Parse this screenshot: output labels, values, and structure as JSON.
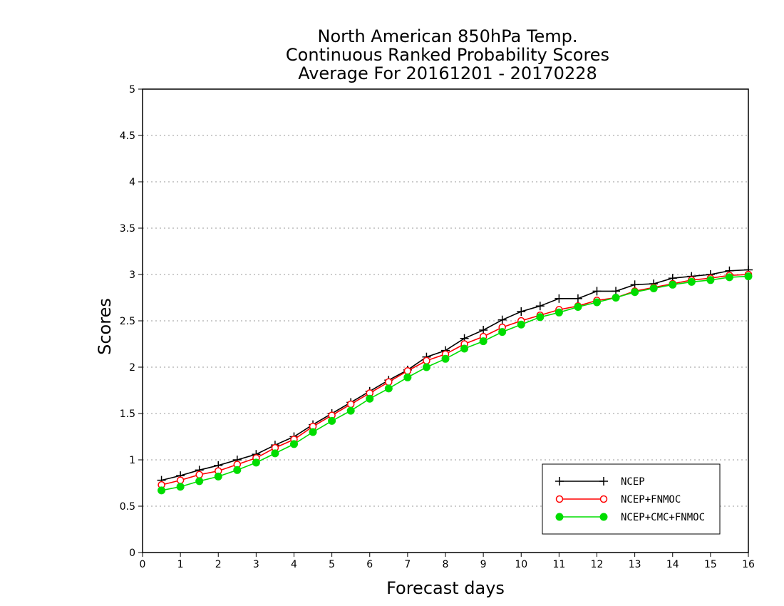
{
  "chart_data": {
    "type": "line",
    "title": [
      "North American 850hPa Temp.",
      "Continuous Ranked Probability Scores",
      "Average For 20161201 - 20170228"
    ],
    "xlabel": "Forecast days",
    "ylabel": "Scores",
    "xlim": [
      0,
      16
    ],
    "ylim": [
      0,
      5
    ],
    "xticks": [
      "0",
      "1",
      "2",
      "3",
      "4",
      "5",
      "6",
      "7",
      "8",
      "9",
      "10",
      "11",
      "12",
      "13",
      "14",
      "15",
      "16"
    ],
    "yticks": [
      "0",
      "0.5",
      "1",
      "1.5",
      "2",
      "2.5",
      "3",
      "3.5",
      "4",
      "4.5",
      "5"
    ],
    "grid": "horizontal dotted",
    "legend_position": "bottom-right",
    "x": [
      0.5,
      1,
      1.5,
      2,
      2.5,
      3,
      3.5,
      4,
      4.5,
      5,
      5.5,
      6,
      6.5,
      7,
      7.5,
      8,
      8.5,
      9,
      9.5,
      10,
      10.5,
      11,
      11.5,
      12,
      12.5,
      13,
      13.5,
      14,
      14.5,
      15,
      15.5,
      16
    ],
    "series": [
      {
        "name": "NCEP",
        "color": "#000000",
        "marker": "plus",
        "values": [
          0.78,
          0.83,
          0.89,
          0.94,
          1.0,
          1.06,
          1.16,
          1.25,
          1.38,
          1.5,
          1.62,
          1.74,
          1.86,
          1.97,
          2.11,
          2.18,
          2.31,
          2.4,
          2.51,
          2.6,
          2.66,
          2.74,
          2.74,
          2.82,
          2.82,
          2.89,
          2.9,
          2.96,
          2.98,
          3.0,
          3.04,
          3.05
        ]
      },
      {
        "name": "NCEP+FNMOC",
        "color": "#ff0000",
        "marker": "open-circle",
        "values": [
          0.73,
          0.78,
          0.84,
          0.88,
          0.95,
          1.02,
          1.13,
          1.22,
          1.36,
          1.48,
          1.6,
          1.72,
          1.84,
          1.96,
          2.07,
          2.14,
          2.25,
          2.33,
          2.43,
          2.5,
          2.56,
          2.62,
          2.66,
          2.72,
          2.75,
          2.82,
          2.86,
          2.9,
          2.94,
          2.96,
          2.99,
          3.0
        ]
      },
      {
        "name": "NCEP+CMC+FNMOC",
        "color": "#00dd00",
        "marker": "filled-circle",
        "values": [
          0.67,
          0.71,
          0.77,
          0.82,
          0.89,
          0.97,
          1.07,
          1.17,
          1.3,
          1.42,
          1.53,
          1.66,
          1.77,
          1.89,
          2.0,
          2.09,
          2.2,
          2.28,
          2.38,
          2.46,
          2.54,
          2.59,
          2.65,
          2.7,
          2.75,
          2.81,
          2.85,
          2.89,
          2.92,
          2.94,
          2.97,
          2.98
        ]
      }
    ]
  }
}
